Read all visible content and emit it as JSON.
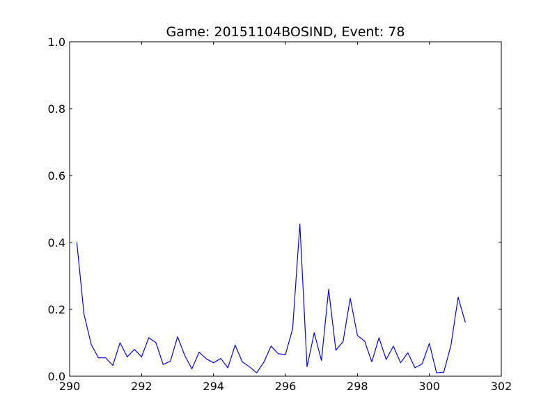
{
  "chart_data": {
    "type": "line",
    "title": "Game: 20151104BOSIND, Event: 78",
    "xlabel": "",
    "ylabel": "",
    "xlim": [
      290,
      302
    ],
    "ylim": [
      0.0,
      1.0
    ],
    "x_ticks": [
      "290",
      "292",
      "294",
      "296",
      "298",
      "300",
      "302"
    ],
    "y_ticks": [
      "0.0",
      "0.2",
      "0.4",
      "0.6",
      "0.8",
      "1.0"
    ],
    "grid": false,
    "legend": "none",
    "series": [
      {
        "color": "#0000ff",
        "x": [
          290.2,
          290.4,
          290.6,
          290.8,
          291.0,
          291.2,
          291.4,
          291.6,
          291.8,
          292.0,
          292.2,
          292.4,
          292.6,
          292.8,
          293.0,
          293.2,
          293.4,
          293.6,
          293.8,
          294.0,
          294.2,
          294.4,
          294.6,
          294.8,
          295.0,
          295.2,
          295.4,
          295.6,
          295.8,
          296.0,
          296.2,
          296.4,
          296.6,
          296.8,
          297.0,
          297.2,
          297.4,
          297.6,
          297.8,
          298.0,
          298.2,
          298.4,
          298.6,
          298.8,
          299.0,
          299.2,
          299.4,
          299.6,
          299.8,
          300.0,
          300.2,
          300.4,
          300.6,
          300.8,
          301.0
        ],
        "y": [
          0.4,
          0.185,
          0.095,
          0.055,
          0.055,
          0.032,
          0.1,
          0.058,
          0.08,
          0.058,
          0.115,
          0.1,
          0.035,
          0.045,
          0.118,
          0.062,
          0.022,
          0.072,
          0.052,
          0.04,
          0.053,
          0.025,
          0.093,
          0.043,
          0.028,
          0.01,
          0.042,
          0.09,
          0.067,
          0.065,
          0.142,
          0.455,
          0.028,
          0.13,
          0.047,
          0.26,
          0.078,
          0.103,
          0.233,
          0.122,
          0.105,
          0.043,
          0.115,
          0.05,
          0.09,
          0.04,
          0.07,
          0.025,
          0.037,
          0.098,
          0.01,
          0.012,
          0.092,
          0.236,
          0.161
        ]
      }
    ]
  }
}
